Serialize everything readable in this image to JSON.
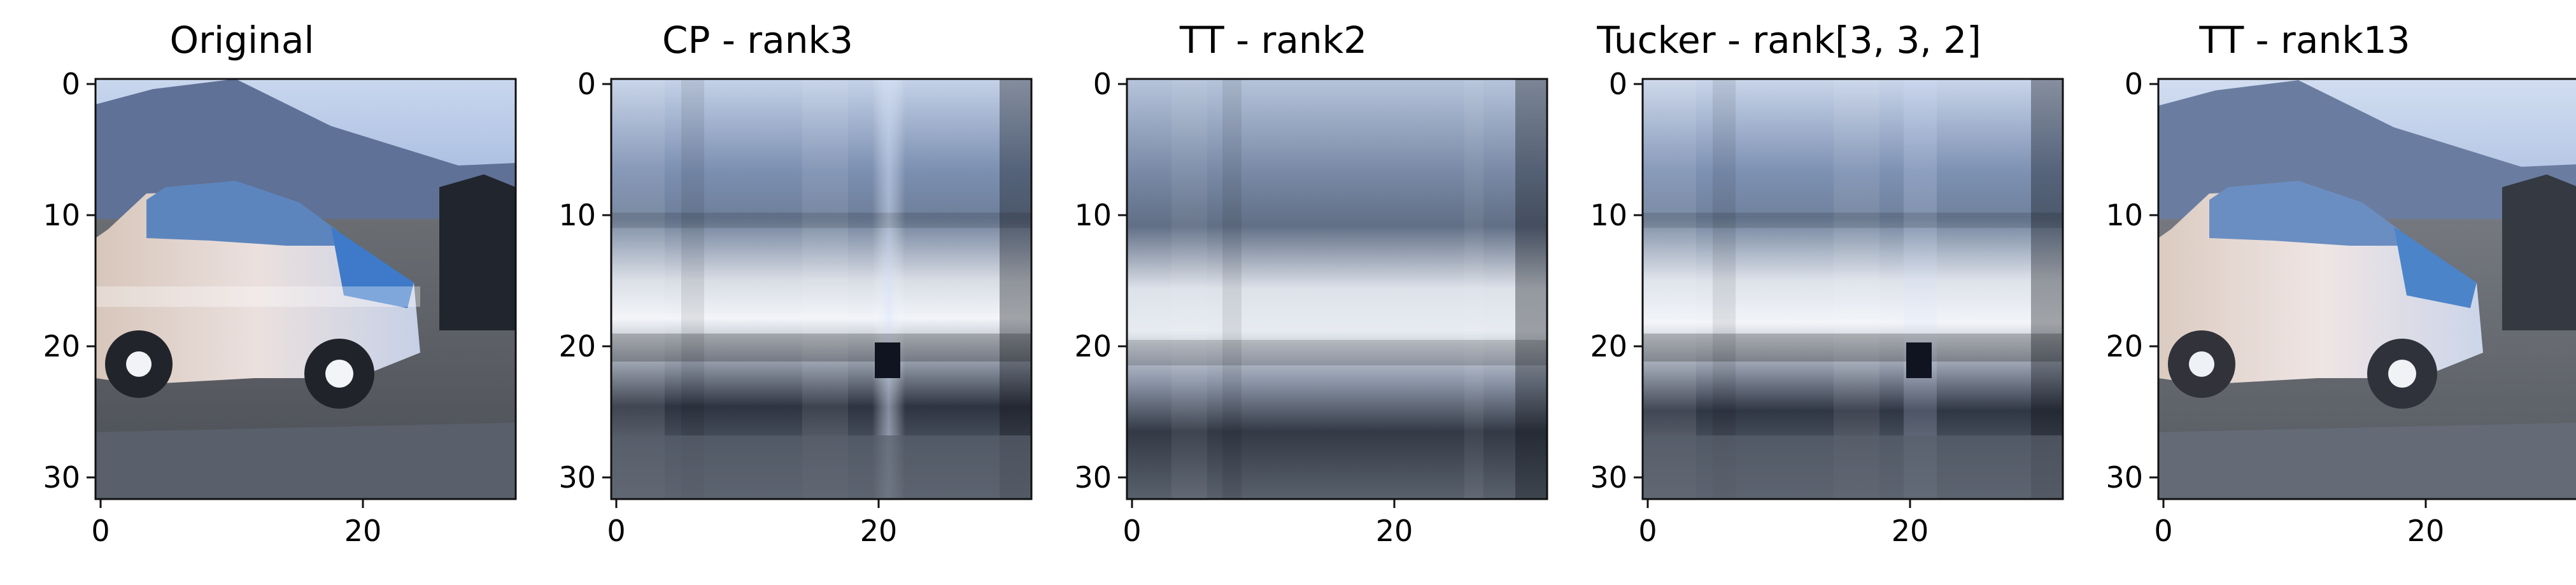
{
  "figure": {
    "panels": [
      {
        "title": "Original",
        "variant": "original",
        "x_ticks": [
          "0",
          "20"
        ],
        "y_ticks": [
          "0",
          "10",
          "20",
          "30"
        ],
        "icon": "car-photo"
      },
      {
        "title": "CP - rank3",
        "variant": "cp3",
        "x_ticks": [
          "0",
          "20"
        ],
        "y_ticks": [
          "0",
          "10",
          "20",
          "30"
        ],
        "icon": "low-rank-reconstruction"
      },
      {
        "title": "TT - rank2",
        "variant": "tt2",
        "x_ticks": [
          "0",
          "20"
        ],
        "y_ticks": [
          "0",
          "10",
          "20",
          "30"
        ],
        "icon": "low-rank-reconstruction"
      },
      {
        "title": "Tucker - rank[3, 3, 2]",
        "variant": "tucker",
        "x_ticks": [
          "0",
          "20"
        ],
        "y_ticks": [
          "0",
          "10",
          "20",
          "30"
        ],
        "icon": "low-rank-reconstruction"
      },
      {
        "title": "TT - rank13",
        "variant": "tt13",
        "x_ticks": [
          "0",
          "20"
        ],
        "y_ticks": [
          "0",
          "10",
          "20",
          "30"
        ],
        "icon": "car-photo"
      }
    ]
  }
}
